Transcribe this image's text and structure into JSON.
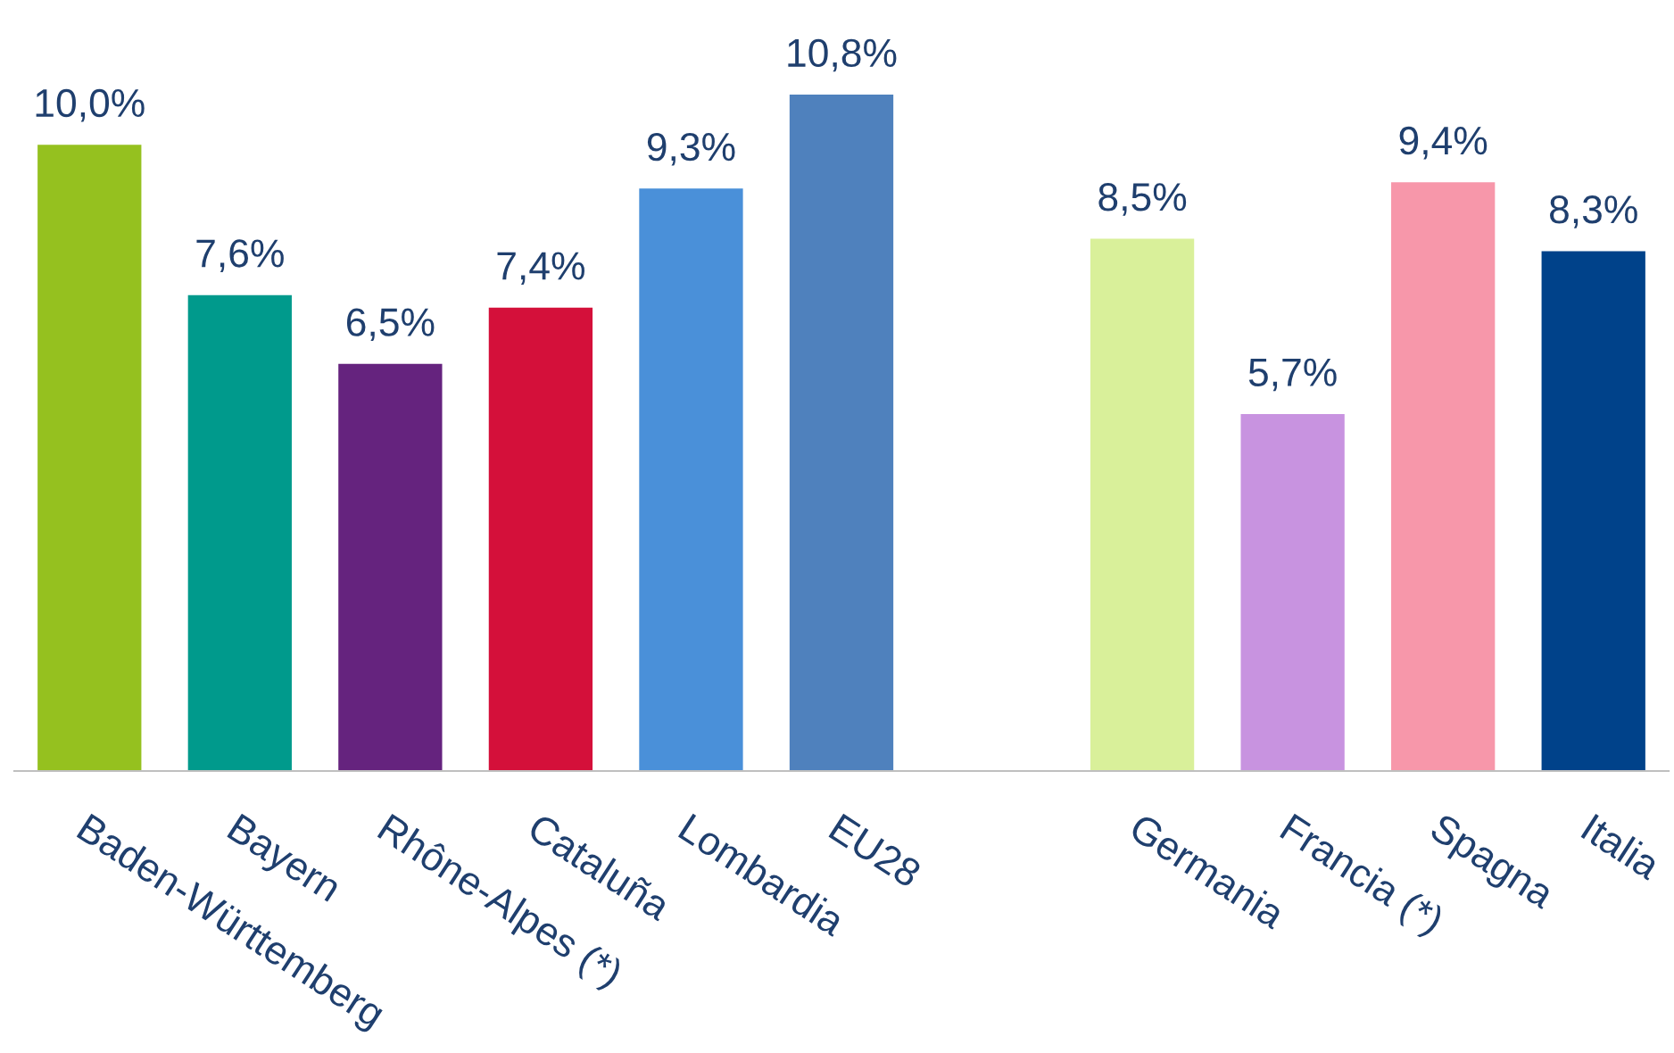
{
  "chart_data": {
    "type": "bar",
    "categories": [
      "Baden-Württemberg",
      "Bayern",
      "Rhône-Alpes (*)",
      "Cataluña",
      "Lombardia",
      "EU28",
      null,
      "Germania",
      "Francia (*)",
      "Spagna",
      "Italia"
    ],
    "values": [
      10.0,
      7.6,
      6.5,
      7.4,
      9.3,
      10.8,
      null,
      8.5,
      5.7,
      9.4,
      8.3
    ],
    "value_labels": [
      "10,0%",
      "7,6%",
      "6,5%",
      "7,4%",
      "9,3%",
      "10,8%",
      null,
      "8,5%",
      "5,7%",
      "9,4%",
      "8,3%"
    ],
    "colors": [
      "#95c11f",
      "#009a8c",
      "#65237e",
      "#d4103a",
      "#4a90d9",
      "#4f81bd",
      "#ffffff",
      "#d9f09a",
      "#c893e0",
      "#f797aa",
      "#00428a"
    ],
    "grid": false,
    "legend": false
  }
}
